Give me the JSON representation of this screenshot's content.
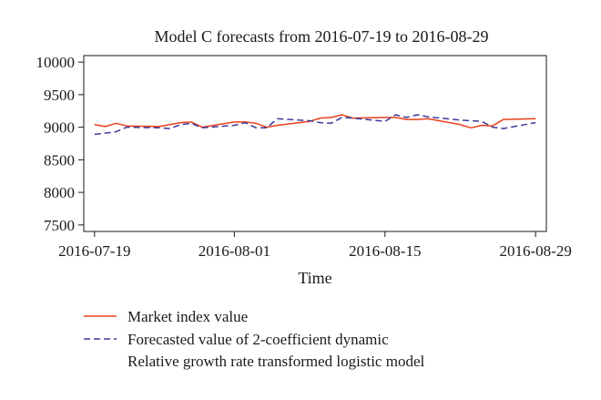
{
  "chart_data": {
    "type": "line",
    "title": "Model C forecasts from 2016-07-19 to 2016-08-29",
    "xlabel": "Time",
    "ylabel": "",
    "ylim": [
      7400,
      10100
    ],
    "yticks": [
      7500,
      8000,
      8500,
      9000,
      9500,
      10000
    ],
    "xlim": [
      "2016-07-18",
      "2016-08-30"
    ],
    "xticks": [
      {
        "date": "2016-07-19",
        "label": "2016-07-19"
      },
      {
        "date": "2016-08-01",
        "label": "2016-08-01"
      },
      {
        "date": "2016-08-15",
        "label": "2016-08-15"
      },
      {
        "date": "2016-08-29",
        "label": "2016-08-29"
      }
    ],
    "x": [
      "2016-07-19",
      "2016-07-20",
      "2016-07-21",
      "2016-07-22",
      "2016-07-25",
      "2016-07-26",
      "2016-07-27",
      "2016-07-28",
      "2016-07-29",
      "2016-08-01",
      "2016-08-02",
      "2016-08-03",
      "2016-08-04",
      "2016-08-05",
      "2016-08-08",
      "2016-08-09",
      "2016-08-10",
      "2016-08-11",
      "2016-08-12",
      "2016-08-15",
      "2016-08-16",
      "2016-08-17",
      "2016-08-18",
      "2016-08-19",
      "2016-08-22",
      "2016-08-23",
      "2016-08-24",
      "2016-08-25",
      "2016-08-26",
      "2016-08-29"
    ],
    "series": [
      {
        "name": "Market index value",
        "color": "#e8401c",
        "style": "solid",
        "values": [
          9040,
          9010,
          9060,
          9020,
          9010,
          9040,
          9070,
          9080,
          9000,
          9080,
          9080,
          9060,
          9000,
          9030,
          9090,
          9140,
          9150,
          9190,
          9140,
          9150,
          9150,
          9120,
          9120,
          9130,
          9040,
          8990,
          9030,
          9020,
          9120,
          9130
        ]
      },
      {
        "name": "Forecasted value of 2-coefficient dynamic Relative growth rate transformed logistic model",
        "color": "#3b3b9a",
        "style": "dashed",
        "values": [
          8890,
          8910,
          8930,
          9000,
          8990,
          8980,
          9040,
          9060,
          8990,
          9030,
          9070,
          8990,
          8990,
          9130,
          9100,
          9070,
          9060,
          9150,
          9140,
          9090,
          9190,
          9150,
          9190,
          9160,
          9110,
          9100,
          9090,
          9000,
          8980,
          9070
        ]
      }
    ],
    "legend": {
      "position": "bottom",
      "entries": [
        {
          "lines": [
            "Market index value"
          ]
        },
        {
          "lines": [
            "Forecasted value of 2-coefficient dynamic",
            "Relative growth rate transformed logistic model"
          ]
        }
      ]
    },
    "grid": false
  }
}
